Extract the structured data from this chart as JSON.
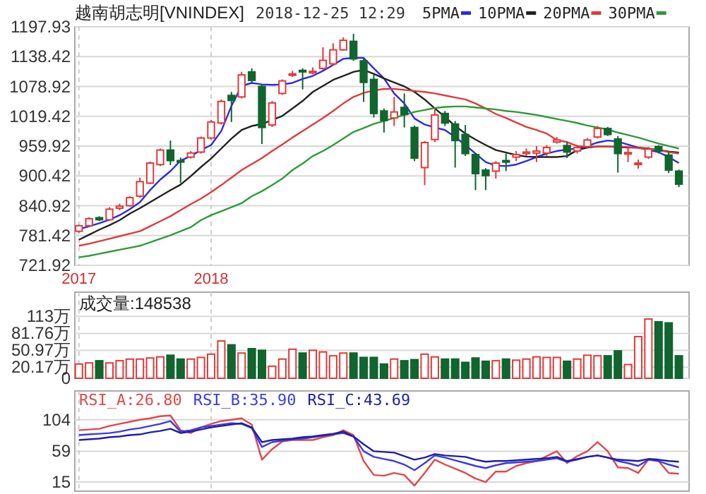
{
  "chart_data": [
    {
      "type": "candlestick",
      "title": "越南胡志明[VNINDEX]",
      "subtitle": "2018-12-25 12:29",
      "categories": [
        "2017",
        null,
        null,
        null,
        null,
        null,
        null,
        null,
        null,
        null,
        null,
        null,
        null,
        "2018",
        null,
        null,
        null,
        null,
        null,
        null,
        null,
        null,
        null,
        null,
        null,
        null,
        null,
        null,
        null,
        null,
        null,
        null,
        null,
        null,
        null,
        null,
        null,
        null,
        null,
        null,
        null,
        null,
        null,
        null,
        null,
        null,
        null,
        null,
        null,
        null,
        null,
        null,
        null,
        null,
        null,
        null,
        null,
        null,
        null,
        null
      ],
      "ohlc": [
        [
          790,
          803,
          787,
          801
        ],
        [
          801,
          818,
          799,
          815
        ],
        [
          817,
          820,
          810,
          813
        ],
        [
          813,
          838,
          811,
          834
        ],
        [
          836,
          845,
          832,
          840
        ],
        [
          841,
          860,
          839,
          857
        ],
        [
          860,
          897,
          857,
          889
        ],
        [
          886,
          929,
          884,
          926
        ],
        [
          923,
          955,
          920,
          952
        ],
        [
          952,
          971,
          922,
          931
        ],
        [
          931,
          937,
          886,
          928
        ],
        [
          938,
          950,
          935,
          946
        ],
        [
          948,
          979,
          945,
          976
        ],
        [
          976,
          1012,
          973,
          1008
        ],
        [
          1006,
          1053,
          1003,
          1049
        ],
        [
          1061,
          1068,
          1008,
          1051
        ],
        [
          1058,
          1108,
          1055,
          1102
        ],
        [
          1108,
          1115,
          1085,
          1091
        ],
        [
          1079,
          1083,
          964,
          997
        ],
        [
          1002,
          1050,
          998,
          1046
        ],
        [
          1065,
          1093,
          1062,
          1090
        ],
        [
          1102,
          1110,
          1098,
          1104
        ],
        [
          1111,
          1115,
          1073,
          1108
        ],
        [
          1106,
          1117,
          1103,
          1109
        ],
        [
          1115,
          1157,
          1112,
          1131
        ],
        [
          1124,
          1165,
          1120,
          1152
        ],
        [
          1152,
          1177,
          1150,
          1171
        ],
        [
          1169,
          1184,
          1130,
          1134
        ],
        [
          1130,
          1136,
          1048,
          1087
        ],
        [
          1093,
          1103,
          1017,
          1025
        ],
        [
          1030,
          1035,
          987,
          1011
        ],
        [
          1016,
          1058,
          1000,
          1028
        ],
        [
          1037,
          1065,
          997,
          1023
        ],
        [
          997,
          1001,
          930,
          936
        ],
        [
          917,
          970,
          882,
          967
        ],
        [
          973,
          1034,
          968,
          1022
        ],
        [
          1025,
          1030,
          1000,
          1006
        ],
        [
          1004,
          1010,
          917,
          971
        ],
        [
          983,
          1002,
          940,
          945
        ],
        [
          943,
          946,
          872,
          905
        ],
        [
          912,
          916,
          872,
          901
        ],
        [
          910,
          930,
          895,
          926
        ],
        [
          931,
          945,
          910,
          928
        ],
        [
          938,
          950,
          930,
          943
        ],
        [
          945,
          955,
          940,
          948
        ],
        [
          946,
          960,
          928,
          950
        ],
        [
          946,
          962,
          940,
          957
        ],
        [
          968,
          978,
          965,
          972
        ],
        [
          961,
          968,
          936,
          948
        ],
        [
          950,
          962,
          945,
          957
        ],
        [
          959,
          976,
          955,
          972
        ],
        [
          978,
          1000,
          975,
          995
        ],
        [
          995,
          998,
          980,
          983
        ],
        [
          974,
          980,
          907,
          945
        ],
        [
          944,
          957,
          928,
          947
        ],
        [
          924,
          933,
          915,
          926
        ],
        [
          938,
          958,
          934,
          954
        ],
        [
          959,
          962,
          945,
          950
        ],
        [
          942,
          950,
          906,
          912
        ],
        [
          910,
          913,
          878,
          884
        ]
      ],
      "colors": [
        "#e03a3a",
        "#e03a3a",
        "#11652f",
        "#e03a3a",
        "#e03a3a",
        "#e03a3a",
        "#e03a3a",
        "#e03a3a",
        "#e03a3a",
        "#11652f",
        "#11652f",
        "#e03a3a",
        "#e03a3a",
        "#e03a3a",
        "#e03a3a",
        "#11652f",
        "#e03a3a",
        "#11652f",
        "#11652f",
        "#e03a3a",
        "#e03a3a",
        "#e03a3a",
        "#11652f",
        "#e03a3a",
        "#e03a3a",
        "#e03a3a",
        "#e03a3a",
        "#11652f",
        "#11652f",
        "#11652f",
        "#11652f",
        "#e03a3a",
        "#11652f",
        "#11652f",
        "#e03a3a",
        "#e03a3a",
        "#11652f",
        "#11652f",
        "#11652f",
        "#11652f",
        "#11652f",
        "#e03a3a",
        "#11652f",
        "#e03a3a",
        "#e03a3a",
        "#e03a3a",
        "#e03a3a",
        "#e03a3a",
        "#11652f",
        "#e03a3a",
        "#e03a3a",
        "#e03a3a",
        "#11652f",
        "#11652f",
        "#e03a3a",
        "#e03a3a",
        "#e03a3a",
        "#11652f",
        "#11652f",
        "#11652f"
      ],
      "ylim": [
        721.92,
        1197.93
      ],
      "yticks": [
        721.92,
        781.42,
        840.92,
        900.42,
        959.92,
        1019.42,
        1078.92,
        1138.42,
        1197.93
      ],
      "grid": true,
      "legend": "top",
      "series": [
        {
          "type": "line",
          "name": "5PMA",
          "color": "#2a2ae6",
          "values": [
            794,
            800,
            806,
            813,
            822,
            834,
            848,
            872,
            893,
            910,
            931,
            940,
            952,
            962,
            990,
            1040,
            1080,
            1086,
            1083,
            1082,
            1083,
            1086,
            1094,
            1100,
            1110,
            1122,
            1134,
            1136,
            1136,
            1115,
            1095,
            1065,
            1045,
            1015,
            1003,
            997,
            992,
            978,
            962,
            945,
            928,
            921,
            920,
            923,
            930,
            938,
            945,
            950,
            953,
            955,
            960,
            967,
            971,
            969,
            963,
            957,
            952,
            948,
            938,
            926
          ]
        },
        {
          "type": "line",
          "name": "10PMA",
          "color": "#222222",
          "values": [
            773,
            783,
            793,
            802,
            812,
            825,
            836,
            848,
            860,
            872,
            883,
            900,
            918,
            935,
            955,
            975,
            992,
            1000,
            1004,
            1012,
            1020,
            1035,
            1050,
            1068,
            1080,
            1092,
            1100,
            1108,
            1112,
            1104,
            1095,
            1087,
            1079,
            1068,
            1053,
            1035,
            1018,
            1000,
            985,
            973,
            962,
            952,
            947,
            942,
            939,
            938,
            938,
            938,
            940,
            952,
            957,
            959,
            959,
            958,
            957,
            957,
            955,
            952,
            949,
            947
          ]
        },
        {
          "type": "line",
          "name": "20PMA",
          "color": "#e03a3a",
          "values": [
            761,
            765,
            770,
            775,
            780,
            785,
            790,
            800,
            810,
            820,
            832,
            844,
            855,
            868,
            882,
            897,
            912,
            924,
            936,
            950,
            963,
            977,
            990,
            1003,
            1016,
            1030,
            1045,
            1058,
            1066,
            1071,
            1074,
            1074,
            1072,
            1070,
            1068,
            1065,
            1061,
            1057,
            1053,
            1045,
            1035,
            1024,
            1016,
            1007,
            998,
            992,
            985,
            972,
            968,
            960,
            959,
            959,
            959,
            959,
            958,
            956,
            954,
            952,
            948,
            945
          ]
        },
        {
          "type": "line",
          "name": "30PMA",
          "color": "#2f9a3a",
          "values": [
            738,
            741,
            745,
            749,
            753,
            757,
            761,
            768,
            775,
            782,
            790,
            798,
            812,
            822,
            830,
            838,
            846,
            860,
            870,
            882,
            895,
            912,
            925,
            940,
            950,
            962,
            975,
            988,
            996,
            1004,
            1010,
            1016,
            1022,
            1028,
            1032,
            1036,
            1038,
            1039,
            1039,
            1037,
            1035,
            1033,
            1030,
            1028,
            1025,
            1022,
            1018,
            1014,
            1010,
            1006,
            1001,
            997,
            993,
            987,
            982,
            977,
            971,
            965,
            960,
            955
          ]
        }
      ]
    },
    {
      "type": "bar",
      "title": "成交量:148538",
      "categories": [
        "2017",
        null,
        null,
        null,
        null,
        null,
        null,
        null,
        null,
        null,
        null,
        null,
        null,
        "2018",
        null,
        null,
        null,
        null,
        null,
        null,
        null,
        null,
        null,
        null,
        null,
        null,
        null,
        null,
        null,
        null,
        null,
        null,
        null,
        null,
        null,
        null,
        null,
        null,
        null,
        null,
        null,
        null,
        null,
        null,
        null,
        null,
        null,
        null,
        null,
        null,
        null,
        null,
        null,
        null,
        null,
        null,
        null,
        null,
        null,
        null
      ],
      "values": [
        26,
        28,
        32,
        28,
        32,
        35,
        35,
        37,
        39,
        42,
        35,
        35,
        38,
        44,
        68,
        61,
        46,
        54,
        51,
        22,
        35,
        53,
        46,
        51,
        48,
        41,
        46,
        46,
        38,
        38,
        26,
        35,
        32,
        34,
        44,
        39,
        35,
        35,
        29,
        37,
        31,
        32,
        35,
        33,
        35,
        39,
        38,
        38,
        31,
        35,
        42,
        41,
        41,
        50,
        25,
        76,
        108,
        103,
        101,
        41
      ],
      "colors": [
        "#e03a3a",
        "#e03a3a",
        "#11652f",
        "#e03a3a",
        "#e03a3a",
        "#e03a3a",
        "#e03a3a",
        "#e03a3a",
        "#e03a3a",
        "#11652f",
        "#11652f",
        "#e03a3a",
        "#e03a3a",
        "#e03a3a",
        "#e03a3a",
        "#11652f",
        "#e03a3a",
        "#11652f",
        "#11652f",
        "#e03a3a",
        "#e03a3a",
        "#e03a3a",
        "#11652f",
        "#e03a3a",
        "#e03a3a",
        "#e03a3a",
        "#e03a3a",
        "#11652f",
        "#11652f",
        "#11652f",
        "#11652f",
        "#e03a3a",
        "#11652f",
        "#11652f",
        "#e03a3a",
        "#e03a3a",
        "#11652f",
        "#11652f",
        "#11652f",
        "#11652f",
        "#11652f",
        "#e03a3a",
        "#11652f",
        "#e03a3a",
        "#e03a3a",
        "#e03a3a",
        "#e03a3a",
        "#e03a3a",
        "#11652f",
        "#e03a3a",
        "#e03a3a",
        "#e03a3a",
        "#11652f",
        "#11652f",
        "#e03a3a",
        "#e03a3a",
        "#e03a3a",
        "#11652f",
        "#11652f",
        "#11652f"
      ],
      "ylim": [
        0,
        157
      ],
      "yticks": [
        0,
        {
          "value": 20.17,
          "label": "20.17万"
        },
        {
          "value": 50.97,
          "label": "50.97万"
        },
        {
          "value": 81.76,
          "label": "81.76万"
        },
        {
          "value": 113,
          "label": "113万"
        }
      ],
      "grid": true,
      "tick_labels": "y"
    },
    {
      "type": "line",
      "categories": [
        "2017",
        null,
        null,
        null,
        null,
        null,
        null,
        null,
        null,
        null,
        null,
        null,
        null,
        "2018",
        null,
        null,
        null,
        null,
        null,
        null,
        null,
        null,
        null,
        null,
        null,
        null,
        null,
        null,
        null,
        null,
        null,
        null,
        null,
        null,
        null,
        null,
        null,
        null,
        null,
        null,
        null,
        null,
        null,
        null,
        null,
        null,
        null,
        null,
        null,
        null,
        null,
        null,
        null,
        null,
        null,
        null,
        null,
        null,
        null,
        null
      ],
      "ylim": [
        2,
        145
      ],
      "yticks": [
        15,
        59,
        104
      ],
      "grid": true,
      "tick_labels": "y",
      "legend": "top left",
      "series": [
        {
          "name": "RSI_A:26.80",
          "color": "#e04848",
          "values": [
            89,
            90,
            91,
            95,
            98,
            101,
            104,
            106,
            109,
            110,
            89,
            85,
            93,
            98,
            102,
            104,
            106,
            97,
            47,
            62,
            73,
            75,
            75,
            75,
            79,
            82,
            89,
            82,
            45,
            25,
            24,
            28,
            25,
            10,
            28,
            47,
            40,
            34,
            28,
            20,
            15,
            30,
            30,
            38,
            42,
            45,
            52,
            59,
            42,
            52,
            59,
            72,
            59,
            36,
            35,
            28,
            47,
            45,
            28,
            27
          ]
        },
        {
          "name": "RSI_B:35.90",
          "color": "#3a3ae8",
          "values": [
            82,
            83,
            84,
            85,
            87,
            90,
            92,
            95,
            98,
            102,
            87,
            89,
            93,
            95,
            97,
            99,
            98,
            92,
            65,
            72,
            74,
            76,
            77,
            79,
            81,
            83,
            85,
            80,
            59,
            51,
            48,
            45,
            40,
            32,
            42,
            53,
            50,
            46,
            42,
            38,
            35,
            39,
            42,
            43,
            44,
            45,
            47,
            49,
            44,
            47,
            51,
            53,
            50,
            45,
            42,
            38,
            47,
            45,
            40,
            36
          ]
        },
        {
          "name": "RSI_C:43.69",
          "color": "#2020a0",
          "values": [
            75,
            76,
            77,
            79,
            80,
            82,
            83,
            86,
            88,
            91,
            85,
            87,
            90,
            93,
            95,
            97,
            99,
            93,
            72,
            75,
            76,
            77,
            79,
            80,
            82,
            84,
            87,
            80,
            69,
            59,
            58,
            57,
            52,
            47,
            50,
            55,
            53,
            52,
            51,
            47,
            44,
            45,
            45,
            46,
            47,
            48,
            49,
            51,
            45,
            48,
            51,
            53,
            50,
            47,
            46,
            45,
            48,
            47,
            45,
            44
          ]
        }
      ]
    }
  ]
}
